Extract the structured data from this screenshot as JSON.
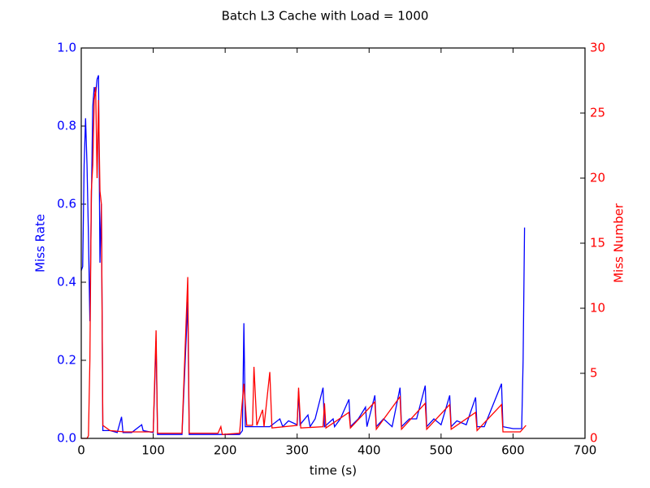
{
  "chart_data": {
    "type": "line",
    "title": "Batch L3 Cache with Load = 1000",
    "x_label": "time (s)",
    "y_label": "Miss Rate",
    "y2_label": "Miss Number",
    "xlim": [
      0,
      700
    ],
    "xticks": [
      0,
      100,
      200,
      300,
      400,
      500,
      600,
      700
    ],
    "ylim": [
      0,
      1
    ],
    "yticks": [
      {
        "value": 0,
        "label": "0.0"
      },
      0.2,
      0.4,
      0.6,
      0.8,
      {
        "value": 1,
        "label": "1.0"
      }
    ],
    "y2lim": [
      0,
      30
    ],
    "y2ticks": [
      0,
      5,
      10,
      15,
      20,
      25,
      30
    ],
    "series": [
      {
        "color": "#0000ff",
        "x": [
          0,
          2,
          4,
          6,
          8,
          10,
          12,
          14,
          16,
          18,
          20,
          22,
          24,
          26,
          28,
          30,
          40,
          50,
          56,
          58,
          70,
          84,
          86,
          100,
          104,
          106,
          120,
          140,
          148,
          150,
          180,
          200,
          220,
          224,
          226,
          228,
          240,
          250,
          262,
          276,
          280,
          288,
          300,
          302,
          304,
          315,
          318,
          325,
          336,
          338,
          350,
          352,
          360,
          372,
          374,
          385,
          395,
          397,
          408,
          410,
          420,
          432,
          443,
          445,
          456,
          466,
          478,
          480,
          490,
          500,
          512,
          514,
          522,
          535,
          548,
          550,
          560,
          584,
          586,
          600,
          612,
          614,
          616
        ],
        "values": [
          0.43,
          0.44,
          0.7,
          0.82,
          0.7,
          0.52,
          0.3,
          0.6,
          0.85,
          0.9,
          0.88,
          0.92,
          0.93,
          0.45,
          0.6,
          0.02,
          0.02,
          0.015,
          0.055,
          0.015,
          0.015,
          0.035,
          0.02,
          0.015,
          0.25,
          0.01,
          0.01,
          0.01,
          0.35,
          0.01,
          0.01,
          0.01,
          0.01,
          0.02,
          0.295,
          0.03,
          0.03,
          0.03,
          0.03,
          0.05,
          0.03,
          0.045,
          0.035,
          0.12,
          0.035,
          0.06,
          0.03,
          0.05,
          0.13,
          0.03,
          0.05,
          0.03,
          0.05,
          0.1,
          0.03,
          0.05,
          0.08,
          0.03,
          0.11,
          0.03,
          0.05,
          0.03,
          0.13,
          0.03,
          0.05,
          0.05,
          0.135,
          0.03,
          0.05,
          0.035,
          0.11,
          0.03,
          0.045,
          0.035,
          0.105,
          0.03,
          0.03,
          0.14,
          0.03,
          0.025,
          0.025,
          0.2,
          0.54
        ]
      },
      {
        "color": "#ff0000",
        "axis": "y2",
        "x": [
          0,
          8,
          10,
          12,
          14,
          16,
          18,
          20,
          22,
          24,
          26,
          28,
          30,
          40,
          60,
          100,
          104,
          106,
          140,
          148,
          150,
          190,
          194,
          196,
          220,
          226,
          230,
          238,
          240,
          244,
          252,
          254,
          262,
          265,
          300,
          302,
          305,
          336,
          338,
          340,
          372,
          374,
          408,
          410,
          443,
          445,
          478,
          480,
          512,
          514,
          548,
          550,
          584,
          586,
          610,
          618
        ],
        "values": [
          0,
          0,
          0.2,
          6,
          19,
          21,
          26,
          27,
          20,
          26,
          19,
          18,
          1,
          0.6,
          0.5,
          0.5,
          8.3,
          0.4,
          0.4,
          12.4,
          0.4,
          0.4,
          0.9,
          0.3,
          0.4,
          4.2,
          1,
          1,
          5.5,
          1,
          2.2,
          0.9,
          5.1,
          0.8,
          1,
          3.9,
          0.8,
          0.9,
          2.7,
          0.8,
          2,
          0.8,
          2.8,
          0.7,
          3.2,
          0.7,
          2.7,
          0.7,
          2.6,
          0.7,
          2,
          0.6,
          2.6,
          0.5,
          0.5,
          1
        ]
      }
    ]
  }
}
